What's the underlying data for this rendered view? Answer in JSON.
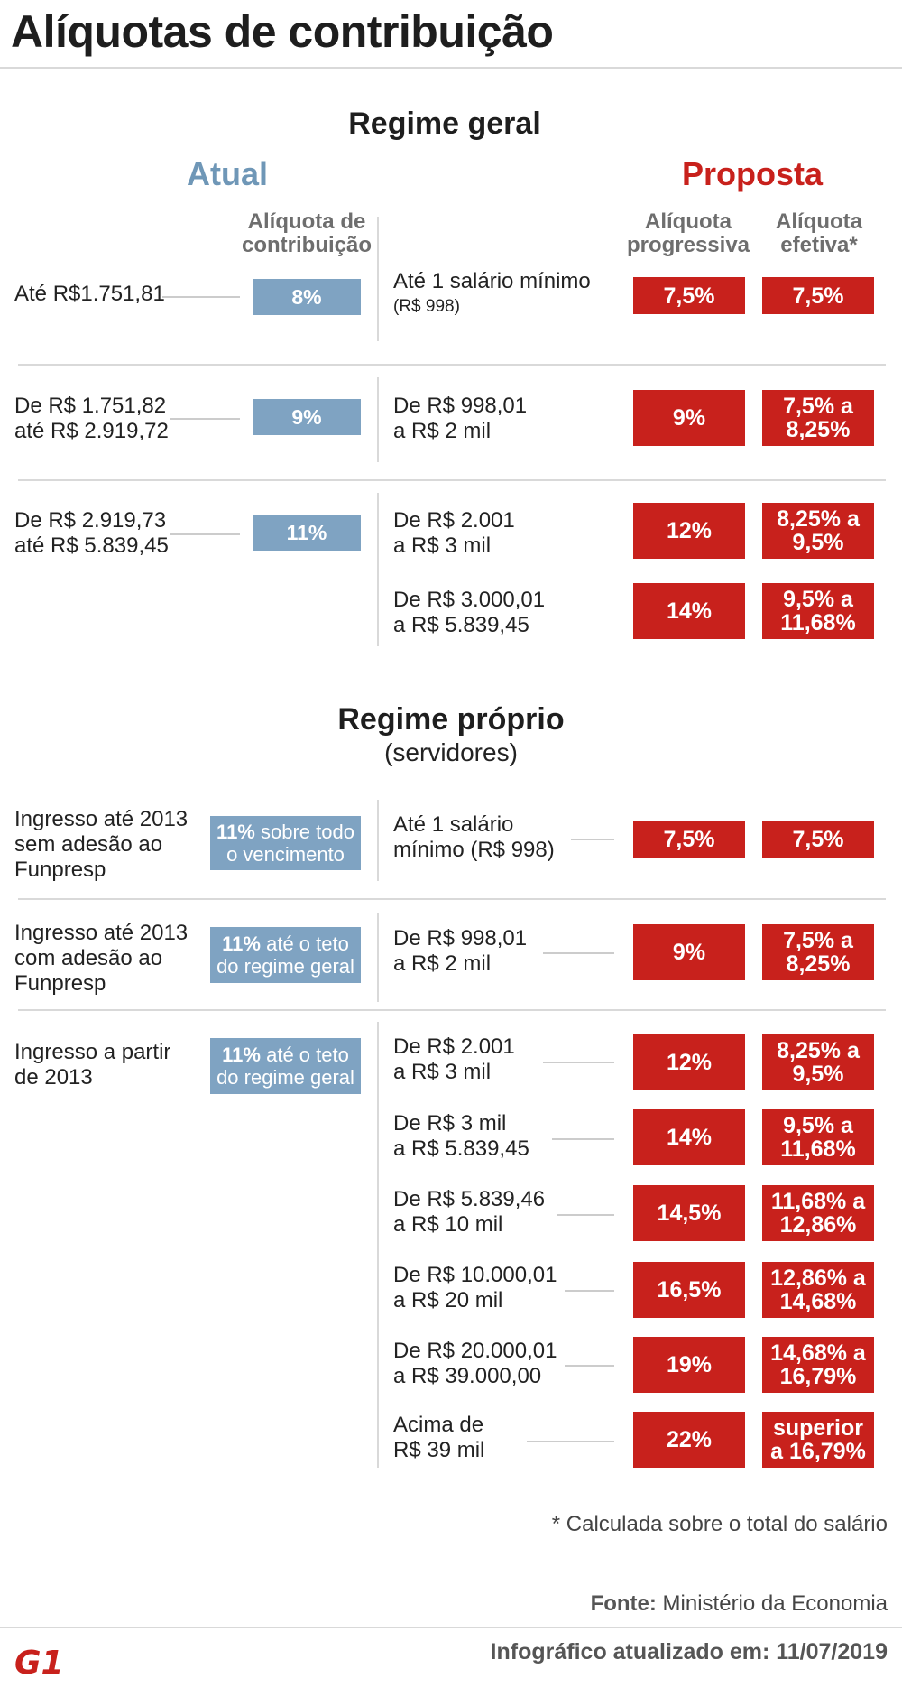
{
  "title": "Alíquotas de contribuição",
  "regime_geral": {
    "heading": "Regime geral",
    "atual_label": "Atual",
    "proposta_label": "Proposta",
    "atual_subhead": "Alíquota de contribuição",
    "prog_subhead": "Alíquota progressiva",
    "efet_subhead": "Alíquota efetiva*",
    "atual_rows": [
      {
        "label": "Até R$1.751,81",
        "rate": "8%"
      },
      {
        "label": "De R$ 1.751,82\naté R$ 2.919,72",
        "rate": "9%"
      },
      {
        "label": "De R$ 2.919,73\naté R$ 5.839,45",
        "rate": "11%"
      }
    ],
    "proposta_rows": [
      {
        "label": "Até 1 salário mínimo",
        "label_small": "(R$ 998)",
        "prog": "7,5%",
        "efet": "7,5%"
      },
      {
        "label": "De R$ 998,01\na R$ 2 mil",
        "prog": "9%",
        "efet": "7,5% a\n8,25%"
      },
      {
        "label": "De R$ 2.001\na R$ 3 mil",
        "prog": "12%",
        "efet": "8,25% a\n9,5%"
      },
      {
        "label": "De R$ 3.000,01\na R$ 5.839,45",
        "prog": "14%",
        "efet": "9,5% a\n11,68%"
      }
    ]
  },
  "regime_proprio": {
    "heading": "Regime próprio",
    "subheading": "(servidores)",
    "atual_rows": [
      {
        "label": "Ingresso até 2013\nsem adesão ao\nFunpresp",
        "rate_bold": "11%",
        "rate_rest": " sobre todo o vencimento"
      },
      {
        "label": "Ingresso até 2013\ncom adesão ao\nFunpresp",
        "rate_bold": "11%",
        "rate_rest": " até o teto do regime geral"
      },
      {
        "label": "Ingresso a partir\nde 2013",
        "rate_bold": "11%",
        "rate_rest": " até o teto do regime geral"
      }
    ],
    "proposta_rows": [
      {
        "label": "Até 1 salário\nmínimo (R$ 998)",
        "prog": "7,5%",
        "efet": "7,5%"
      },
      {
        "label": "De R$ 998,01\na R$ 2 mil",
        "prog": "9%",
        "efet": "7,5% a\n8,25%"
      },
      {
        "label": "De R$ 2.001\na R$ 3 mil",
        "prog": "12%",
        "efet": "8,25% a\n9,5%"
      },
      {
        "label": "De R$ 3 mil\na R$ 5.839,45",
        "prog": "14%",
        "efet": "9,5% a\n11,68%"
      },
      {
        "label": "De R$ 5.839,46\na R$ 10 mil",
        "prog": "14,5%",
        "efet": "11,68% a\n12,86%"
      },
      {
        "label": "De R$ 10.000,01\na R$ 20 mil",
        "prog": "16,5%",
        "efet": "12,86% a\n14,68%"
      },
      {
        "label": "De R$ 20.000,01\na R$ 39.000,00",
        "prog": "19%",
        "efet": "14,68% a\n16,79%"
      },
      {
        "label": "Acima de\nR$ 39 mil",
        "prog": "22%",
        "efet": "superior\na 16,79%"
      }
    ]
  },
  "footnote": "* Calculada sobre o total do salário",
  "source_label": "Fonte:",
  "source_value": "Ministério da Economia",
  "logo_text": "G1",
  "updated": "Infográfico atualizado em: 11/07/2019",
  "colors": {
    "atual_blue": "#7fa3c2",
    "proposta_red": "#c8211c"
  }
}
